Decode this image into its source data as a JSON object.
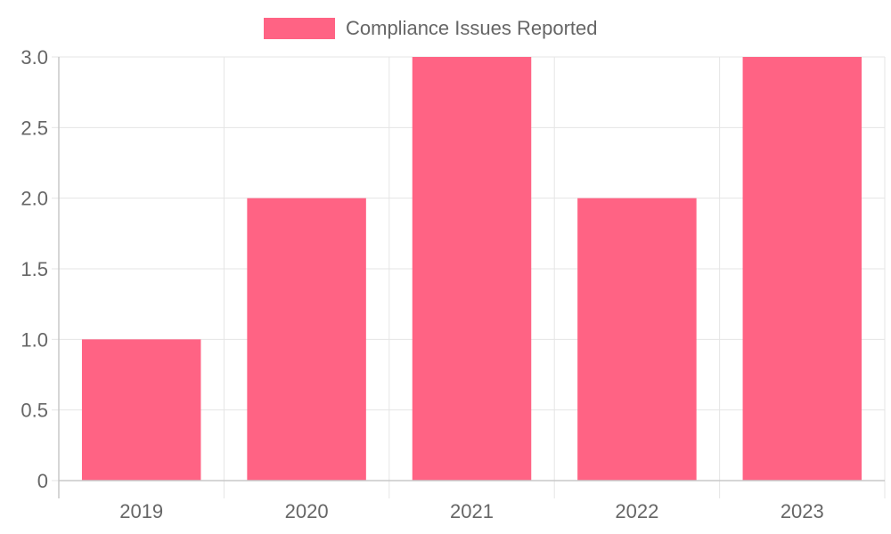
{
  "chart_data": {
    "type": "bar",
    "categories": [
      "2019",
      "2020",
      "2021",
      "2022",
      "2023"
    ],
    "series": [
      {
        "name": "Compliance Issues Reported",
        "values": [
          1,
          2,
          3,
          2,
          3
        ],
        "color": "#ff6384"
      }
    ],
    "ylim": [
      0,
      3
    ],
    "yticks": [
      "0",
      "0.5",
      "1.0",
      "1.5",
      "2.0",
      "2.5",
      "3.0"
    ],
    "grid": true,
    "legend_position": "top",
    "title": "",
    "xlabel": "",
    "ylabel": ""
  },
  "colors": {
    "bar": "#ff6384",
    "grid": "#e5e5e5",
    "axis": "#c8c8c8",
    "text": "#666666"
  }
}
